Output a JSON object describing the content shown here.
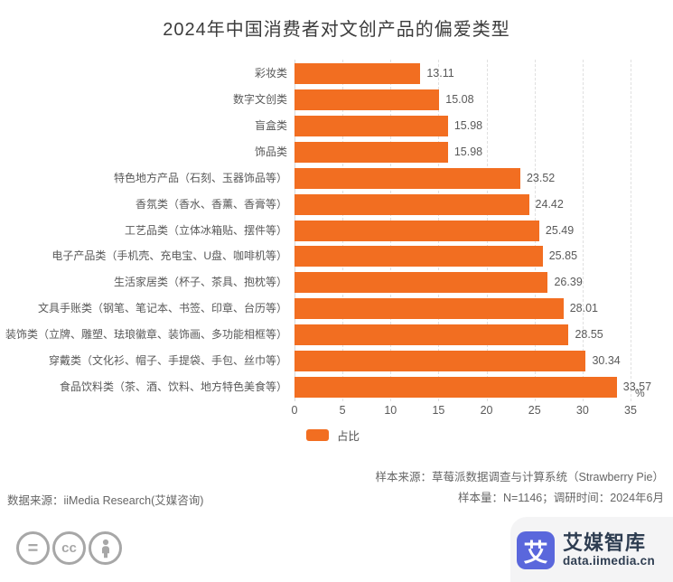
{
  "title": "2024年中国消费者对文创产品的偏爱类型",
  "chart_data": {
    "type": "bar",
    "orientation": "horizontal",
    "title": "2024年中国消费者对文创产品的偏爱类型",
    "categories": [
      "彩妆类",
      "数字文创类",
      "盲盒类",
      "饰品类",
      "特色地方产品（石刻、玉器饰品等）",
      "香氛类（香水、香薰、香膏等）",
      "工艺品类（立体冰箱贴、摆件等）",
      "电子产品类（手机壳、充电宝、U盘、咖啡机等）",
      "生活家居类（杯子、茶具、抱枕等）",
      "文具手账类（钢笔、笔记本、书签、印章、台历等）",
      "装饰类（立牌、雕塑、珐琅徽章、装饰画、多功能相框等）",
      "穿戴类（文化衫、帽子、手提袋、手包、丝巾等）",
      "食品饮料类（茶、酒、饮料、地方特色美食等）"
    ],
    "values": [
      13.11,
      15.08,
      15.98,
      15.98,
      23.52,
      24.42,
      25.49,
      25.85,
      26.39,
      28.01,
      28.55,
      30.34,
      33.57
    ],
    "series_name": "占比",
    "xlabel": "",
    "ylabel": "",
    "unit": "%",
    "xlim": [
      0,
      35
    ],
    "xticks": [
      0,
      5,
      10,
      15,
      20,
      25,
      30,
      35
    ],
    "grid": true,
    "legend_position": "bottom-left",
    "bar_color": "#F26E21"
  },
  "axis": {
    "unit_label": "%"
  },
  "legend": {
    "label": "占比",
    "swatch_color": "#F26E21"
  },
  "sources": {
    "sample_source": "样本来源：草莓派数据调查与计算系统（Strawberry Pie）",
    "sample_size": "样本量：N=1146；调研时间：2024年6月",
    "data_source": "数据来源：iiMedia Research(艾媒咨询)"
  },
  "footer": {
    "license_equals": "=",
    "license_cc": "cc",
    "logo_glyph": "艾",
    "brand_name": "艾媒智库",
    "brand_url": "data.iimedia.cn",
    "brand_color": "#5A67DC"
  }
}
